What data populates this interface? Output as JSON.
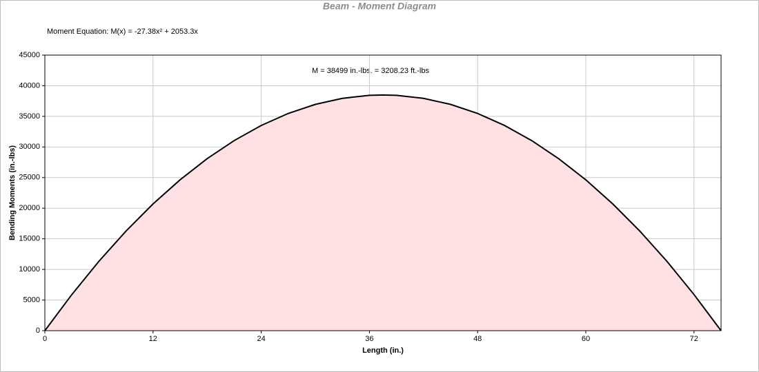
{
  "chart_data": {
    "type": "area",
    "title": "Beam - Moment Diagram",
    "annotations": [
      "Moment Equation:  M(x) = -27.38x² + 2053.3x",
      "M = 38499 in.-lbs. = 3208.23 ft.-lbs"
    ],
    "x_label": "Length (in.)",
    "y_label": "Bending Moments (in.-lbs)",
    "x": [
      0,
      3,
      6,
      9,
      12,
      15,
      18,
      21,
      24,
      27,
      30,
      33,
      36,
      37.5,
      39,
      42,
      45,
      48,
      51,
      54,
      57,
      60,
      63,
      66,
      69,
      72,
      75
    ],
    "values": [
      0,
      5913,
      11334,
      16262,
      20697,
      24639,
      28088,
      31045,
      33508,
      35479,
      36957,
      37942,
      38434,
      38496,
      38434,
      37940,
      36954,
      35475,
      33503,
      31038,
      28080,
      24630,
      20687,
      16251,
      11322,
      5900,
      0
    ],
    "color": "#000000",
    "fill_color": "#ffe0e3",
    "xlim": [
      0,
      75
    ],
    "xticks": [
      0,
      12,
      24,
      36,
      48,
      60,
      72
    ],
    "ylim": [
      0,
      45000
    ],
    "yticks": [
      0,
      5000,
      10000,
      15000,
      20000,
      25000,
      30000,
      35000,
      40000,
      45000
    ],
    "grid": true
  }
}
